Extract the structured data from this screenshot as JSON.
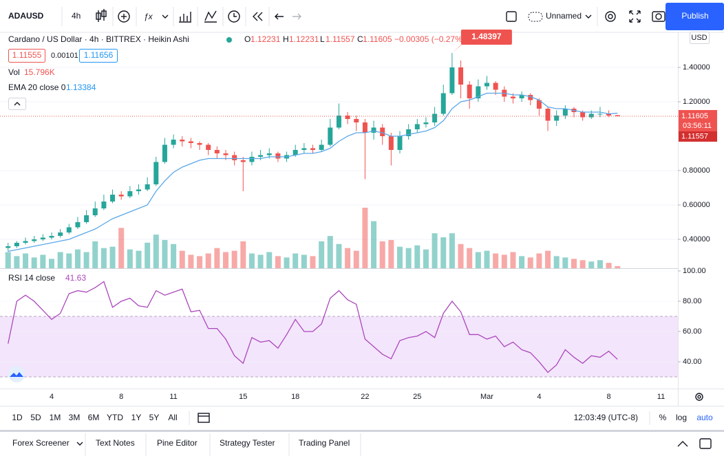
{
  "toolbar": {
    "symbol": "ADAUSD",
    "interval": "4h",
    "layout_name": "Unnamed",
    "publish": "Publish"
  },
  "legend": {
    "symbol_desc": "Cardano / US Dollar · 4h · BITTREX · Heikin Ashi",
    "o": "O",
    "h": "H",
    "l": "L",
    "c": "C",
    "change": "−0.00305 (−0.27%)",
    "bid": "1.11555",
    "spread": "0.00101",
    "ask": "1.11656",
    "vol_label": "Vol",
    "vol_value": "15.796K",
    "ema_label": "EMA 20 close 0",
    "rsi_label": "RSI 14 close"
  },
  "price_axis": {
    "currency": "USD",
    "countdown": "03:56:11"
  },
  "chart_data": {
    "type": "candlestick",
    "categories": [
      null,
      null,
      null,
      null,
      null,
      "4",
      null,
      null,
      null,
      null,
      null,
      null,
      null,
      "8",
      null,
      null,
      null,
      null,
      null,
      "11",
      null,
      null,
      null,
      null,
      null,
      null,
      null,
      "15",
      null,
      null,
      null,
      null,
      null,
      "18",
      null,
      null,
      null,
      null,
      null,
      null,
      null,
      "22",
      null,
      null,
      null,
      null,
      null,
      "25",
      null,
      null,
      null,
      null,
      null,
      null,
      null,
      "Mar",
      null,
      null,
      null,
      null,
      null,
      "4",
      null,
      null,
      null,
      null,
      null,
      null,
      null,
      "8",
      null,
      null,
      null,
      null,
      null,
      "11",
      null
    ],
    "open": [
      0.35,
      0.36,
      0.38,
      0.39,
      0.4,
      0.41,
      0.42,
      0.44,
      0.47,
      0.5,
      0.54,
      0.58,
      0.62,
      0.66,
      0.65,
      0.68,
      0.69,
      0.72,
      0.85,
      0.95,
      0.98,
      0.97,
      0.96,
      0.95,
      0.92,
      0.9,
      0.89,
      0.86,
      0.85,
      0.88,
      0.89,
      0.9,
      0.87,
      0.89,
      0.92,
      0.93,
      0.92,
      0.95,
      1.05,
      1.12,
      1.1,
      1.08,
      1.02,
      1.05,
      1.0,
      0.92,
      1.0,
      1.04,
      1.07,
      1.08,
      1.13,
      1.25,
      1.4,
      1.3,
      1.22,
      1.29,
      1.31,
      1.27,
      1.23,
      1.22,
      1.24,
      1.21,
      1.16,
      1.09,
      1.12,
      1.16,
      1.14,
      1.11,
      1.13,
      1.13,
      1.12231,
      null,
      null,
      null,
      null,
      null,
      null
    ],
    "high": [
      0.38,
      0.39,
      0.41,
      0.42,
      0.43,
      0.44,
      0.46,
      0.49,
      0.53,
      0.57,
      0.62,
      0.66,
      0.69,
      0.68,
      0.71,
      0.72,
      0.76,
      0.88,
      0.99,
      1.01,
      1.0,
      0.99,
      0.97,
      0.96,
      0.94,
      0.92,
      0.91,
      0.88,
      0.91,
      0.92,
      0.93,
      0.91,
      0.91,
      0.95,
      0.96,
      0.95,
      0.98,
      1.1,
      1.19,
      1.14,
      1.12,
      1.1,
      1.09,
      1.07,
      1.02,
      1.03,
      1.07,
      1.1,
      1.11,
      1.17,
      1.3,
      1.48397,
      1.44,
      1.32,
      1.33,
      1.35,
      1.32,
      1.29,
      1.25,
      1.26,
      1.25,
      1.22,
      1.17,
      1.15,
      1.18,
      1.17,
      1.15,
      1.15,
      1.17,
      1.15,
      1.12231,
      null,
      null,
      null,
      null,
      null,
      null
    ],
    "low": [
      0.33,
      0.35,
      0.37,
      0.38,
      0.39,
      0.4,
      0.41,
      0.43,
      0.46,
      0.49,
      0.53,
      0.57,
      0.61,
      0.63,
      0.64,
      0.66,
      0.68,
      0.71,
      0.84,
      0.93,
      0.94,
      0.93,
      0.92,
      0.89,
      0.87,
      0.86,
      0.83,
      0.68,
      0.83,
      0.86,
      0.87,
      0.85,
      0.85,
      0.88,
      0.9,
      0.9,
      0.91,
      0.94,
      1.04,
      1.07,
      1.03,
      0.75,
      0.98,
      0.95,
      0.83,
      0.9,
      0.98,
      1.02,
      1.05,
      1.06,
      1.12,
      1.24,
      1.22,
      1.16,
      1.2,
      1.27,
      1.24,
      1.2,
      1.19,
      1.2,
      1.18,
      1.12,
      1.03,
      1.06,
      1.1,
      1.11,
      1.09,
      1.1,
      1.11,
      1.11,
      1.11557,
      null,
      null,
      null,
      null,
      null,
      null
    ],
    "close": [
      0.36,
      0.38,
      0.39,
      0.4,
      0.41,
      0.42,
      0.44,
      0.47,
      0.5,
      0.54,
      0.58,
      0.62,
      0.66,
      0.65,
      0.68,
      0.69,
      0.72,
      0.85,
      0.95,
      0.98,
      0.97,
      0.96,
      0.95,
      0.92,
      0.9,
      0.89,
      0.86,
      0.85,
      0.88,
      0.89,
      0.9,
      0.87,
      0.89,
      0.92,
      0.93,
      0.92,
      0.95,
      1.05,
      1.12,
      1.1,
      1.08,
      1.02,
      1.05,
      1.0,
      0.92,
      1.0,
      1.04,
      1.07,
      1.08,
      1.13,
      1.25,
      1.4,
      1.3,
      1.22,
      1.29,
      1.31,
      1.27,
      1.23,
      1.22,
      1.24,
      1.21,
      1.16,
      1.09,
      1.12,
      1.16,
      1.14,
      1.11,
      1.13,
      1.13,
      1.12,
      1.11605,
      null,
      null,
      null,
      null,
      null,
      null
    ],
    "up_color": "#26a69a",
    "down_color": "#ef5350",
    "ylim": [
      0.232,
      1.6
    ],
    "yticks": [
      {
        "value": 1.4,
        "label": "1.40000"
      },
      {
        "value": 1.2,
        "label": "1.20000"
      },
      {
        "value": 0.8,
        "label": "0.80000"
      },
      {
        "value": 0.6,
        "label": "0.60000"
      },
      {
        "value": 0.4,
        "label": "0.40000"
      }
    ],
    "grid": true,
    "volume": {
      "values": [
        120,
        90,
        110,
        80,
        100,
        70,
        120,
        110,
        140,
        120,
        200,
        150,
        160,
        300,
        140,
        130,
        190,
        250,
        210,
        180,
        130,
        100,
        90,
        110,
        150,
        120,
        130,
        200,
        110,
        100,
        120,
        90,
        80,
        110,
        100,
        90,
        200,
        240,
        180,
        150,
        130,
        450,
        350,
        200,
        210,
        160,
        150,
        170,
        140,
        260,
        230,
        260,
        180,
        150,
        120,
        130,
        110,
        100,
        120,
        90,
        80,
        110,
        130,
        90,
        80,
        70,
        60,
        50,
        60,
        40,
        15.796,
        null,
        null,
        null,
        null,
        null,
        null
      ]
    },
    "ema": {
      "color": "#5aa7e8",
      "values": [
        0.33,
        0.34,
        0.35,
        0.36,
        0.37,
        0.38,
        0.39,
        0.4,
        0.42,
        0.44,
        0.46,
        0.49,
        0.52,
        0.54,
        0.56,
        0.58,
        0.6,
        0.68,
        0.74,
        0.79,
        0.82,
        0.84,
        0.86,
        0.87,
        0.87,
        0.87,
        0.87,
        0.87,
        0.87,
        0.87,
        0.88,
        0.88,
        0.88,
        0.89,
        0.9,
        0.9,
        0.91,
        0.93,
        0.97,
        1.0,
        1.02,
        1.02,
        1.03,
        1.02,
        1.0,
        1.0,
        1.01,
        1.02,
        1.03,
        1.05,
        1.09,
        1.16,
        1.2,
        1.21,
        1.23,
        1.25,
        1.25,
        1.25,
        1.24,
        1.24,
        1.23,
        1.21,
        1.17,
        1.16,
        1.16,
        1.15,
        1.14,
        1.14,
        1.14,
        1.13,
        1.13384,
        null,
        null,
        null,
        null,
        null,
        null
      ]
    },
    "rsi": {
      "color": "#ab47bc",
      "band": [
        30,
        70
      ],
      "band_color": "#f3e5fb",
      "values": [
        52,
        80,
        84,
        80,
        74,
        68,
        72,
        85,
        87,
        86,
        89,
        93,
        76,
        80,
        82,
        77,
        76,
        87,
        84,
        86,
        88,
        73,
        74,
        62,
        62,
        55,
        44,
        39,
        56,
        53,
        54,
        49,
        58,
        68,
        60,
        60,
        65,
        82,
        87,
        81,
        78,
        55,
        50,
        45,
        42,
        54,
        56,
        57,
        60,
        56,
        72,
        80,
        73,
        58,
        58,
        55,
        57,
        50,
        53,
        48,
        46,
        40,
        33,
        38,
        48,
        43,
        39,
        44,
        43,
        47,
        41.63,
        null,
        null,
        null,
        null,
        null,
        null
      ],
      "ylim": [
        22.3,
        101.8
      ],
      "yticks": [
        {
          "value": 100,
          "label": "100.00"
        },
        {
          "value": 80,
          "label": "80.00"
        },
        {
          "value": 60,
          "label": "60.00"
        },
        {
          "value": 40,
          "label": "40.00"
        }
      ]
    }
  },
  "bottom_bar": {
    "ranges": [
      "1D",
      "5D",
      "1M",
      "3M",
      "6M",
      "YTD",
      "1Y",
      "5Y",
      "All"
    ],
    "clock": "12:03:49 (UTC-8)",
    "percent": "%",
    "log": "log",
    "auto": "auto"
  },
  "tabs": [
    "Forex Screener",
    "Text Notes",
    "Pine Editor",
    "Strategy Tester",
    "Trading Panel"
  ]
}
